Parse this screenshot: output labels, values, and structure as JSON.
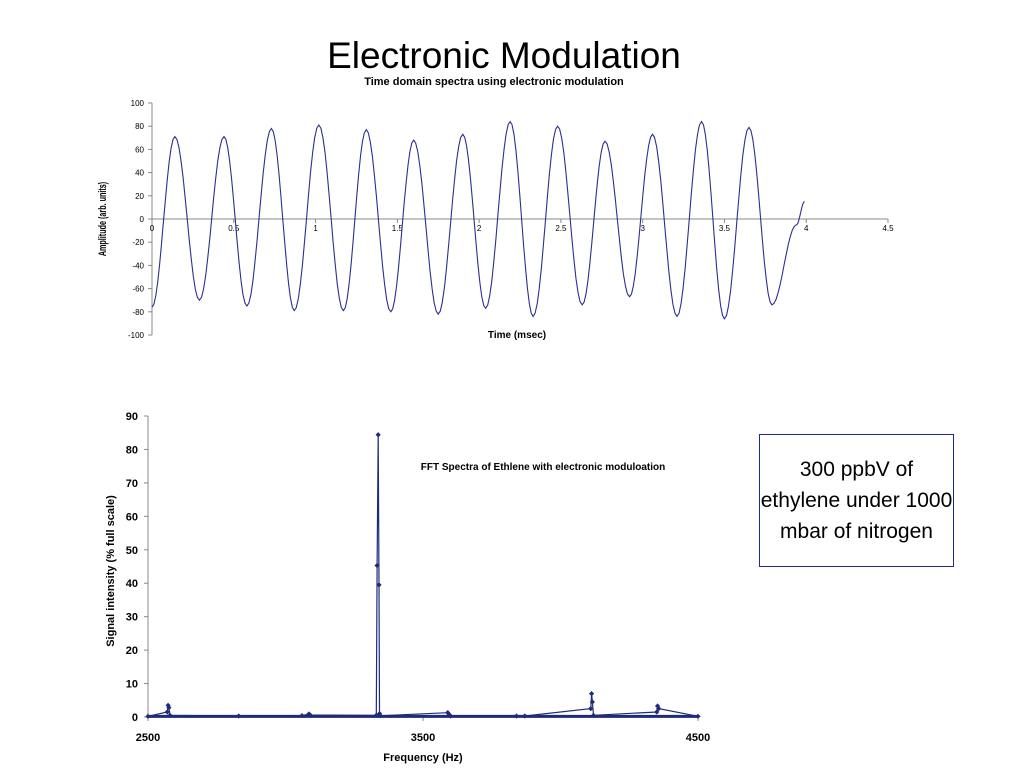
{
  "page": {
    "title": "Electronic Modulation",
    "note": "300 ppbV of ethylene under 1000 mbar of nitrogen"
  },
  "chart_data": [
    {
      "type": "line",
      "title": "Time domain spectra using electronic modulation",
      "xlabel": "Time (msec)",
      "ylabel": "Amplitude (arb. units)",
      "xlim": [
        0,
        4.5
      ],
      "ylim": [
        -100,
        100
      ],
      "xticks": [
        0,
        0.5,
        1,
        1.5,
        2,
        2.5,
        3,
        3.5,
        4,
        4.5
      ],
      "xtick_labels": [
        "0",
        "0.5",
        "1",
        "1.5",
        "2",
        "2.5",
        "3",
        "3.5",
        "4",
        "4.5"
      ],
      "yticks": [
        -100,
        -80,
        -60,
        -40,
        -20,
        0,
        20,
        40,
        60,
        80,
        100
      ],
      "ytick_labels": [
        "-100",
        "-80",
        "-60",
        "-40",
        "-20",
        "0",
        "20",
        "40",
        "60",
        "80",
        "100"
      ],
      "grid": false,
      "line_color": "#2b2f8f",
      "x": [
        0,
        0.14,
        0.29,
        0.44,
        0.58,
        0.73,
        0.87,
        1.02,
        1.17,
        1.31,
        1.46,
        1.6,
        1.75,
        1.9,
        2.04,
        2.19,
        2.33,
        2.48,
        2.63,
        2.77,
        2.92,
        3.06,
        3.21,
        3.36,
        3.5,
        3.65,
        3.79,
        3.94,
        3.99
      ],
      "y": [
        -76,
        71,
        -70,
        71,
        -75,
        78,
        -79,
        81,
        -79,
        77,
        -80,
        68,
        -82,
        73,
        -77,
        84,
        -84,
        80,
        -74,
        67,
        -67,
        73,
        -84,
        84,
        -86,
        79,
        -74,
        -5,
        15
      ]
    },
    {
      "type": "scatter",
      "title": "FFT Spectra of Ethlene with electronic moduloation",
      "xlabel": "Frequency (Hz)",
      "ylabel": "Signal intensity (% full scale)",
      "xlim": [
        2500,
        4500
      ],
      "ylim": [
        0,
        90
      ],
      "xticks": [
        2500,
        3500,
        4500
      ],
      "xtick_labels": [
        "2500",
        "3500",
        "4500"
      ],
      "yticks": [
        0,
        10,
        20,
        30,
        40,
        50,
        60,
        70,
        80,
        90
      ],
      "ytick_labels": [
        "0",
        "10",
        "20",
        "30",
        "40",
        "50",
        "60",
        "70",
        "80",
        "90"
      ],
      "grid": false,
      "marker_color": "#1f2a7a",
      "x": [
        2500,
        2570,
        2573,
        2576,
        2580,
        2830,
        3060,
        3085,
        3090,
        3330,
        3333,
        3337,
        3340,
        3342,
        3345,
        3590,
        3595,
        3600,
        3840,
        3870,
        4110,
        4113,
        4116,
        4120,
        4350,
        4353,
        4357,
        4500
      ],
      "y": [
        0.2,
        1.5,
        3.5,
        2.8,
        0.5,
        0.3,
        0.4,
        0.9,
        0.6,
        0.5,
        45.3,
        84.4,
        39.5,
        1.0,
        0.4,
        1.3,
        0.8,
        0.3,
        0.3,
        0.3,
        2.5,
        7.0,
        4.5,
        0.5,
        1.5,
        3.3,
        2.5,
        0.2
      ]
    }
  ]
}
